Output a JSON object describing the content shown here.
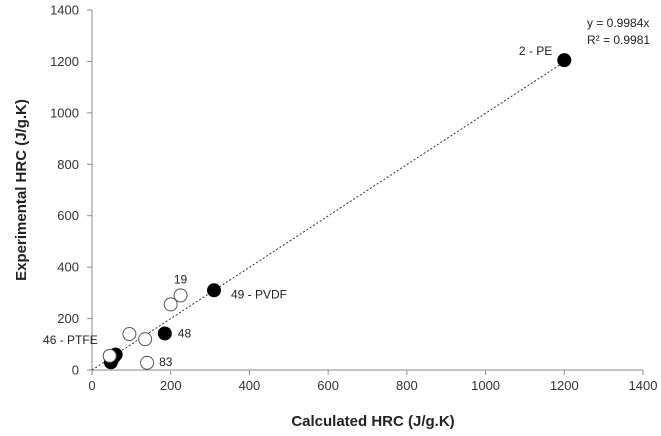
{
  "chart_data": {
    "type": "scatter",
    "xlabel": "Calculated HRC (J/g.K)",
    "ylabel": "Experimental HRC (J/g.K)",
    "xlim": [
      0,
      1400
    ],
    "ylim": [
      0,
      1400
    ],
    "x_ticks": [
      "0",
      "200",
      "400",
      "600",
      "800",
      "1000",
      "1200",
      "1400"
    ],
    "y_ticks": [
      "0",
      "200",
      "400",
      "600",
      "800",
      "1000",
      "1200",
      "1400"
    ],
    "grid": false,
    "series": [
      {
        "marker": "filled",
        "color": "#000000",
        "points": [
          {
            "x": 1200,
            "y": 1205
          },
          {
            "x": 310,
            "y": 310
          },
          {
            "x": 185,
            "y": 142
          },
          {
            "x": 60,
            "y": 60
          },
          {
            "x": 55,
            "y": 50
          },
          {
            "x": 48,
            "y": 30
          }
        ]
      },
      {
        "marker": "open",
        "color": "#ffffff",
        "points": [
          {
            "x": 225,
            "y": 290
          },
          {
            "x": 200,
            "y": 255
          },
          {
            "x": 95,
            "y": 140
          },
          {
            "x": 135,
            "y": 120
          },
          {
            "x": 45,
            "y": 55
          },
          {
            "x": 140,
            "y": 28
          }
        ]
      }
    ],
    "point_labels": [
      {
        "text": "2 - PE",
        "x": 1200,
        "y": 1205
      },
      {
        "text": "49 - PVDF",
        "x": 310,
        "y": 310
      },
      {
        "text": "19",
        "x": 225,
        "y": 290
      },
      {
        "text": "48",
        "x": 185,
        "y": 142
      },
      {
        "text": "46 - PTFE",
        "x": 45,
        "y": 55
      },
      {
        "text": "83",
        "x": 140,
        "y": 28
      }
    ],
    "trendline": {
      "slope": 0.9984,
      "x_range": [
        0,
        1200
      ],
      "style": "dotted"
    },
    "annotation_lines": [
      "y = 0.9984x",
      "R² = 0.9981"
    ]
  }
}
